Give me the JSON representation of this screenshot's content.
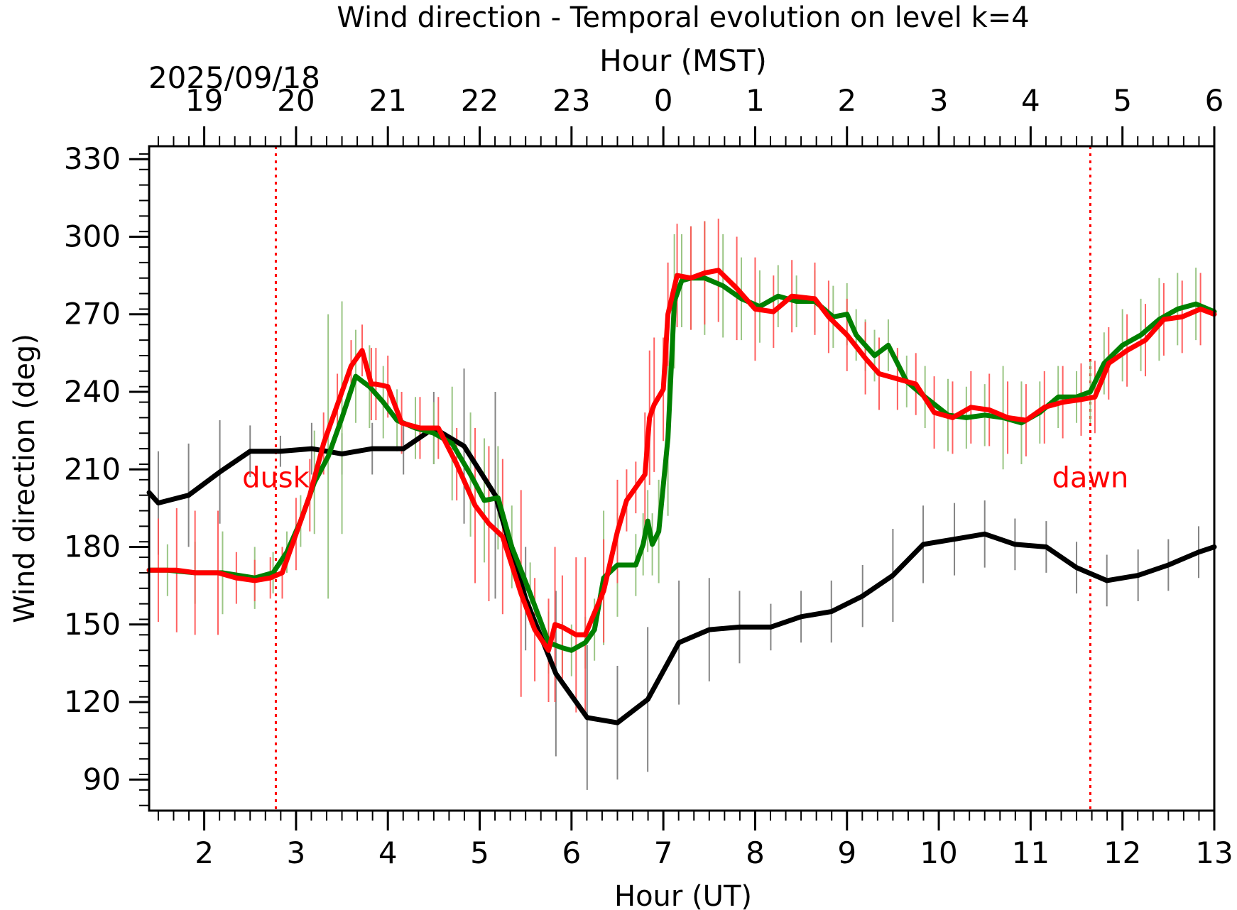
{
  "chart_data": {
    "type": "line",
    "title": "Wind direction - Temporal evolution on level k=4",
    "xlabel": "Hour (UT)",
    "ylabel": "Wind direction (deg)",
    "top_axis_label": "Hour (MST)",
    "date_label": "2025/09/18",
    "xlim": [
      1.4,
      13.0
    ],
    "ylim": [
      78,
      335
    ],
    "x_ticks": [
      2,
      3,
      4,
      5,
      6,
      7,
      8,
      9,
      10,
      11,
      12,
      13
    ],
    "x_tick_labels": [
      "2",
      "3",
      "4",
      "5",
      "6",
      "7",
      "8",
      "9",
      "10",
      "11",
      "12",
      "13"
    ],
    "y_ticks": [
      90,
      120,
      150,
      180,
      210,
      240,
      270,
      300,
      330
    ],
    "y_tick_labels": [
      "90",
      "120",
      "150",
      "180",
      "210",
      "240",
      "270",
      "300",
      "330"
    ],
    "top_ticks_ut": [
      2,
      3,
      4,
      5,
      6,
      7,
      8,
      9,
      10,
      11,
      12,
      13
    ],
    "top_tick_labels": [
      "19",
      "20",
      "21",
      "22",
      "23",
      "0",
      "1",
      "2",
      "3",
      "4",
      "5",
      "6"
    ],
    "events": [
      {
        "label": "dusk",
        "x": 2.78,
        "label_y": 203,
        "color": "#ff0000"
      },
      {
        "label": "dawn",
        "x": 11.65,
        "label_y": 203,
        "color": "#ff0000"
      }
    ],
    "series": [
      {
        "color": "#000000",
        "errorbar_color": "#777777",
        "x": [
          1.4,
          1.5,
          1.83,
          2.17,
          2.5,
          2.83,
          3.17,
          3.5,
          3.83,
          4.17,
          4.5,
          4.83,
          5.17,
          5.5,
          5.83,
          6.17,
          6.5,
          6.83,
          7.17,
          7.5,
          7.83,
          8.17,
          8.5,
          8.83,
          9.17,
          9.5,
          9.83,
          10.17,
          10.5,
          10.83,
          11.17,
          11.5,
          11.83,
          12.17,
          12.5,
          12.83,
          13.0
        ],
        "y": [
          201,
          197,
          200,
          209,
          217,
          217,
          218,
          216,
          218,
          218,
          226,
          219,
          200,
          160,
          131,
          114,
          112,
          121,
          143,
          148,
          149,
          149,
          153,
          155,
          161,
          169,
          181,
          183,
          185,
          181,
          180,
          172,
          167,
          169,
          173,
          178,
          180
        ],
        "err": [
          0,
          20,
          20,
          20,
          10,
          6,
          10,
          8,
          10,
          10,
          14,
          30,
          40,
          20,
          32,
          28,
          22,
          28,
          24,
          20,
          14,
          9,
          10,
          12,
          12,
          18,
          15,
          14,
          13,
          10,
          10,
          10,
          10,
          10,
          10,
          10,
          10
        ]
      },
      {
        "color": "#008000",
        "errorbar_color": "#90c078",
        "x": [
          1.4,
          1.6,
          1.9,
          2.2,
          2.55,
          2.75,
          2.9,
          3.05,
          3.2,
          3.35,
          3.5,
          3.65,
          3.8,
          3.95,
          4.1,
          4.3,
          4.5,
          4.7,
          4.9,
          5.05,
          5.2,
          5.35,
          5.55,
          5.75,
          5.9,
          6.0,
          6.15,
          6.25,
          6.35,
          6.5,
          6.7,
          6.78,
          6.83,
          6.88,
          6.95,
          7.05,
          7.12,
          7.2,
          7.3,
          7.45,
          7.65,
          7.85,
          8.05,
          8.25,
          8.45,
          8.65,
          8.85,
          9.0,
          9.1,
          9.2,
          9.3,
          9.45,
          9.65,
          9.85,
          10.1,
          10.3,
          10.5,
          10.7,
          10.9,
          11.1,
          11.3,
          11.5,
          11.65,
          11.8,
          12.0,
          12.2,
          12.4,
          12.6,
          12.8,
          13.0
        ],
        "y": [
          171,
          171,
          170,
          170,
          168,
          170,
          178,
          190,
          205,
          215,
          230,
          246,
          242,
          236,
          229,
          226,
          224,
          220,
          208,
          198,
          199,
          180,
          162,
          143,
          141,
          140,
          143,
          148,
          168,
          173,
          173,
          181,
          190,
          181,
          186,
          222,
          275,
          283,
          284,
          284,
          281,
          276,
          273,
          277,
          275,
          275,
          269,
          270,
          262,
          258,
          254,
          258,
          244,
          238,
          231,
          230,
          231,
          230,
          228,
          232,
          238,
          238,
          240,
          251,
          258,
          262,
          268,
          272,
          274,
          271
        ],
        "err": [
          8,
          10,
          12,
          16,
          12,
          8,
          8,
          10,
          20,
          55,
          45,
          18,
          16,
          14,
          12,
          12,
          12,
          22,
          24,
          24,
          20,
          16,
          12,
          12,
          10,
          10,
          10,
          12,
          26,
          20,
          12,
          12,
          12,
          12,
          20,
          30,
          26,
          18,
          20,
          22,
          20,
          16,
          14,
          12,
          10,
          12,
          12,
          12,
          10,
          10,
          10,
          10,
          10,
          12,
          14,
          12,
          12,
          20,
          16,
          12,
          12,
          10,
          12,
          12,
          14,
          14,
          16,
          14,
          14,
          12
        ]
      },
      {
        "color": "#ff0000",
        "errorbar_color": "#ff5050",
        "x": [
          1.4,
          1.5,
          1.7,
          1.9,
          2.15,
          2.35,
          2.55,
          2.72,
          2.85,
          3.0,
          3.15,
          3.3,
          3.45,
          3.6,
          3.72,
          3.82,
          3.87,
          4.0,
          4.15,
          4.35,
          4.55,
          4.75,
          4.95,
          5.1,
          5.25,
          5.45,
          5.6,
          5.75,
          5.82,
          5.9,
          6.05,
          6.15,
          6.35,
          6.5,
          6.6,
          6.7,
          6.8,
          6.85,
          6.9,
          7.0,
          7.05,
          7.15,
          7.3,
          7.45,
          7.6,
          7.8,
          8.0,
          8.2,
          8.4,
          8.65,
          8.8,
          9.0,
          9.2,
          9.35,
          9.55,
          9.75,
          9.95,
          10.15,
          10.35,
          10.55,
          10.75,
          10.95,
          11.15,
          11.35,
          11.55,
          11.7,
          11.85,
          12.05,
          12.25,
          12.45,
          12.65,
          12.85,
          13.0
        ],
        "y": [
          171,
          171,
          171,
          170,
          170,
          168,
          167,
          168,
          170,
          185,
          200,
          220,
          235,
          250,
          256,
          243,
          243,
          242,
          228,
          226,
          226,
          212,
          196,
          189,
          184,
          162,
          148,
          140,
          150,
          149,
          146,
          146,
          163,
          186,
          198,
          203,
          208,
          230,
          235,
          241,
          270,
          285,
          284,
          286,
          287,
          280,
          272,
          271,
          277,
          276,
          269,
          262,
          253,
          247,
          245,
          243,
          232,
          230,
          234,
          233,
          230,
          229,
          234,
          236,
          237,
          238,
          251,
          256,
          260,
          268,
          269,
          272,
          270
        ],
        "err": [
          20,
          20,
          24,
          24,
          24,
          10,
          8,
          8,
          10,
          14,
          14,
          12,
          12,
          10,
          10,
          14,
          14,
          12,
          12,
          12,
          12,
          14,
          30,
          30,
          30,
          40,
          20,
          20,
          30,
          20,
          30,
          30,
          20,
          20,
          12,
          10,
          24,
          26,
          26,
          20,
          20,
          20,
          20,
          20,
          20,
          20,
          20,
          14,
          14,
          14,
          14,
          14,
          14,
          14,
          12,
          12,
          14,
          14,
          14,
          14,
          14,
          14,
          14,
          14,
          14,
          14,
          14,
          14,
          14,
          14,
          14,
          14,
          14
        ]
      }
    ]
  }
}
